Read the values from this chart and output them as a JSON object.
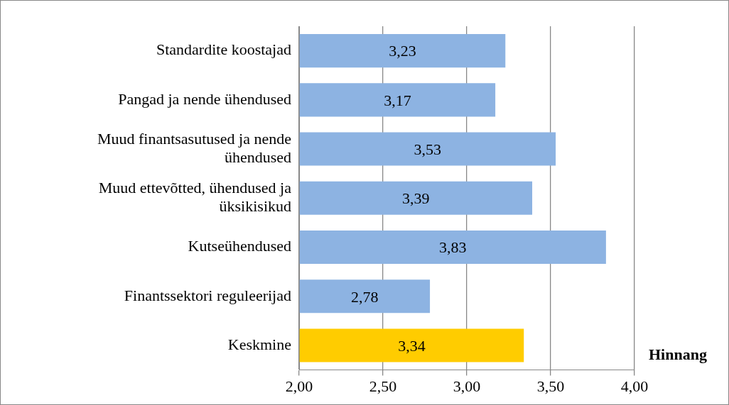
{
  "chart_data": {
    "type": "bar",
    "orientation": "horizontal",
    "xlabel": "Hinnang",
    "categories": [
      "Standardite koostajad",
      "Pangad ja nende ühendused",
      "Muud finantsasutused ja nende ühendused",
      "Muud ettevõtted, ühendused ja üksikisikud",
      "Kutseühendused",
      "Finantssektori reguleerijad",
      "Keskmine"
    ],
    "values": [
      3.23,
      3.17,
      3.53,
      3.39,
      3.83,
      2.78,
      3.34
    ],
    "value_labels": [
      "3,23",
      "3,17",
      "3,53",
      "3,39",
      "3,83",
      "2,78",
      "3,34"
    ],
    "colors": [
      "#8db3e2",
      "#8db3e2",
      "#8db3e2",
      "#8db3e2",
      "#8db3e2",
      "#8db3e2",
      "#ffcc00"
    ],
    "xlim": [
      2,
      4
    ],
    "xticks": [
      {
        "value": 2,
        "label": "2,00"
      },
      {
        "value": 2.5,
        "label": "2,50"
      },
      {
        "value": 3,
        "label": "3,00"
      },
      {
        "value": 3.5,
        "label": "3,50"
      },
      {
        "value": 4,
        "label": "4,00"
      }
    ],
    "grid": "x"
  }
}
